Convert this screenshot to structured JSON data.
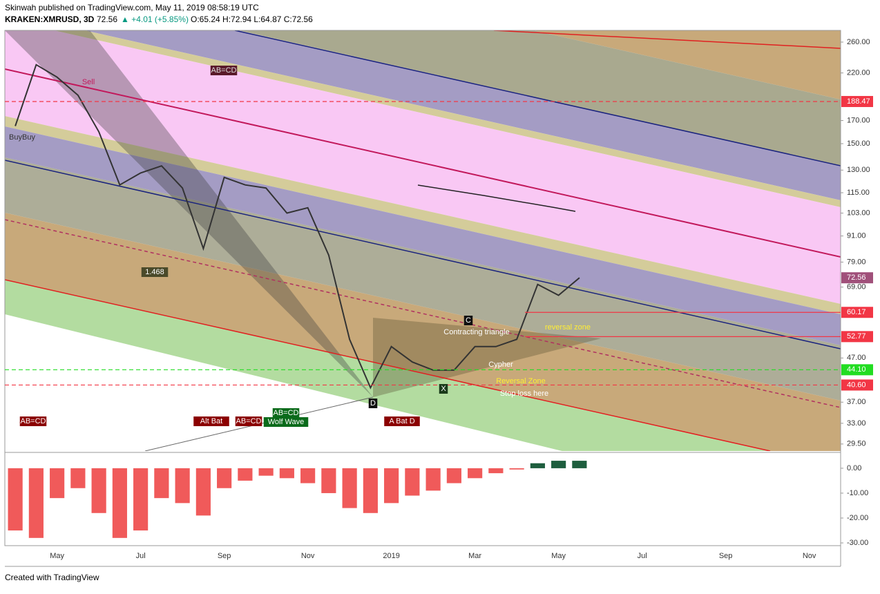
{
  "header": {
    "publisher": "Skinwah published on TradingView.com, May 11, 2019 08:58:19 UTC",
    "symbol": "KRAKEN:XMRUSD, 3D",
    "last": "72.56",
    "change": "▲ +4.01 (+5.85%)",
    "ohlc": "O:65.24 H:72.94 L:64.87 C:72.56"
  },
  "footer": "Created with TradingView",
  "chart_data": [
    {
      "type": "line",
      "categories": [
        null,
        null,
        "May",
        null,
        null,
        null,
        "Jul",
        null,
        null,
        null,
        "Sep",
        null,
        null,
        null,
        "Nov",
        null,
        null,
        null,
        "2019",
        null,
        null,
        null,
        "Mar",
        null,
        null,
        null,
        "May",
        null,
        null,
        null,
        "Jul",
        null,
        null,
        null,
        "Sep",
        null,
        null,
        null,
        "Nov",
        null
      ],
      "values": [
        165,
        230,
        215,
        195,
        160,
        120,
        128,
        133,
        118,
        85,
        125,
        120,
        118,
        103,
        106,
        82,
        52,
        40,
        50,
        46,
        44,
        44,
        50,
        50,
        52,
        70,
        66,
        72.56,
        null,
        null,
        null,
        null,
        null,
        null,
        null,
        null,
        null,
        null,
        null,
        null
      ],
      "color": "#333333",
      "log_scale": true,
      "ylim": [
        28.4,
        277
      ],
      "yticks": [
        {
          "value": 260,
          "label": "260.00"
        },
        {
          "value": 220,
          "label": "220.00"
        },
        {
          "value": 170,
          "label": "170.00"
        },
        {
          "value": 150,
          "label": "150.00"
        },
        {
          "value": 130,
          "label": "130.00"
        },
        {
          "value": 115,
          "label": "115.00"
        },
        {
          "value": 103,
          "label": "103.00"
        },
        {
          "value": 91,
          "label": "91.00"
        },
        {
          "value": 79,
          "label": "79.00"
        },
        {
          "value": 69,
          "label": "69.00"
        },
        {
          "value": 47,
          "label": "47.00"
        },
        {
          "value": 37,
          "label": "37.00"
        },
        {
          "value": 33,
          "label": "33.00"
        },
        {
          "value": 29.5,
          "label": "29.50"
        }
      ],
      "levels": [
        {
          "value": 188.47,
          "label": "188.47",
          "color": "#f23645",
          "style": "dashed"
        },
        {
          "value": 72.56,
          "label": "72.56",
          "color": "#a0507a",
          "style": "none"
        },
        {
          "value": 60.17,
          "label": "60.17",
          "color": "#f23645",
          "style": "solid"
        },
        {
          "value": 52.77,
          "label": "52.77",
          "color": "#f23645",
          "style": "solid"
        },
        {
          "value": 44.1,
          "label": "44.10",
          "color": "#22dd22",
          "style": "dashed"
        },
        {
          "value": 40.6,
          "label": "40.60",
          "color": "#f23645",
          "style": "dashed"
        }
      ],
      "annotations": [
        "AB=CD",
        "1.468",
        "Contracting triangle",
        "reversal zone",
        "Cypher",
        "Reversal Zone",
        "Stop loss here",
        "C",
        "D",
        "X",
        "AB=CD",
        "Alt Bat",
        "AB=CD",
        "AB=CD",
        "Wolf Wave",
        "A Bat D",
        "BuyBuy",
        "Sell"
      ]
    },
    {
      "type": "bar",
      "values": [
        -25,
        -28,
        -12,
        -8,
        -18,
        -28,
        -25,
        -12,
        -14,
        -19,
        -8,
        -5,
        -3,
        -4,
        -6,
        -10,
        -16,
        -18,
        -14,
        -11,
        -9,
        -6,
        -4,
        -2,
        -0.5,
        2,
        3,
        3,
        null,
        null,
        null,
        null,
        null,
        null,
        null,
        null,
        null,
        null,
        null,
        null
      ],
      "color": "#f05a5a",
      "positive_color": "#1e5e3e",
      "ylim": [
        -31.1,
        5.8
      ],
      "yticks": [
        {
          "value": 0,
          "label": "0.00"
        },
        {
          "value": -10,
          "label": "-10.00"
        },
        {
          "value": -20,
          "label": "-20.00"
        },
        {
          "value": -30,
          "label": "-30.00"
        }
      ]
    }
  ]
}
